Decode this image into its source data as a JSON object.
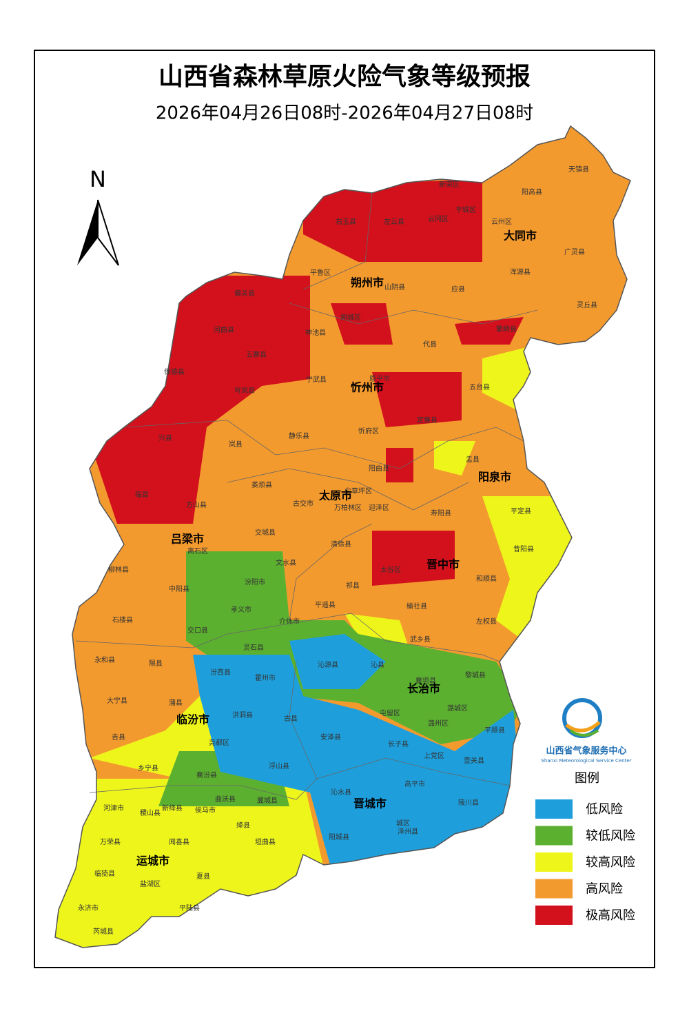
{
  "header": {
    "title": "山西省森林草原火险气象等级预报",
    "subtitle": "2026年04月26日08时-2026年04月27日08时"
  },
  "north": "N",
  "legend": {
    "title": "图例",
    "items": [
      {
        "name": "低风险",
        "color": "#1e9fdc"
      },
      {
        "name": "较低风险",
        "color": "#5cb030"
      },
      {
        "name": "较高风险",
        "color": "#eef51b"
      },
      {
        "name": "高风险",
        "color": "#f39a2f"
      },
      {
        "name": "极高风险",
        "color": "#d2111c"
      }
    ]
  },
  "logo": {
    "name": "山西省气象服务中心",
    "name_en": "Shanxi Meteorological Service Center"
  },
  "cities": [
    "大同市",
    "朔州市",
    "忻州市",
    "阳泉市",
    "太原市",
    "吕梁市",
    "晋中市",
    "长治市",
    "临汾市",
    "晋城市",
    "运城市"
  ],
  "counties": [
    "天镇县",
    "阳高县",
    "新荣区",
    "右玉县",
    "左云县",
    "平城区",
    "云州区",
    "云冈区",
    "广灵县",
    "浑源县",
    "应县",
    "山阴县",
    "平鲁区",
    "灵丘县",
    "繁峙县",
    "代县",
    "朔城区",
    "偏关县",
    "河曲县",
    "神池县",
    "五寨县",
    "宁武县",
    "保德县",
    "岢岚县",
    "五台县",
    "原平市",
    "定襄县",
    "忻府区",
    "兴县",
    "静乐县",
    "岚县",
    "盂县",
    "阳曲县",
    "娄烦县",
    "临县",
    "方山县",
    "古交市",
    "尖草坪区",
    "万柏林区",
    "迎泽区",
    "寿阳县",
    "平定县",
    "交城县",
    "清徐县",
    "昔阳县",
    "离石区",
    "文水县",
    "太谷区",
    "柳林县",
    "汾阳市",
    "和顺县",
    "中阳县",
    "祁县",
    "孝义市",
    "平遥县",
    "榆社县",
    "石楼县",
    "介休市",
    "左权县",
    "交口县",
    "武乡县",
    "灵石县",
    "永和县",
    "隰县",
    "沁源县",
    "沁县",
    "汾西县",
    "霍州市",
    "襄垣县",
    "黎城县",
    "大宁县",
    "蒲县",
    "洪洞县",
    "古县",
    "屯留区",
    "潞城区",
    "潞州区",
    "平顺县",
    "吉县",
    "尧都区",
    "安泽县",
    "长子县",
    "壶关县",
    "上党区",
    "乡宁县",
    "浮山县",
    "襄汾县",
    "沁水县",
    "高平市",
    "陵川县",
    "曲沃县",
    "翼城县",
    "河津市",
    "新绛县",
    "侯马市",
    "稷山县",
    "绛县",
    "阳城县",
    "城区",
    "泽州县",
    "万荣县",
    "闻喜县",
    "垣曲县",
    "临猗县",
    "盐湖区",
    "夏县",
    "永济市",
    "平陆县",
    "芮城县"
  ]
}
